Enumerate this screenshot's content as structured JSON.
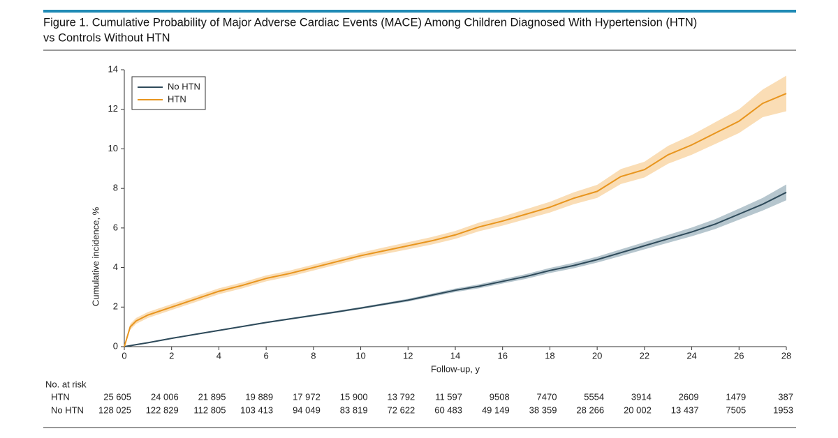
{
  "chart_data": {
    "type": "line",
    "title": [
      "Figure 1. Cumulative Probability of Major Adverse Cardiac Events (MACE) Among Children Diagnosed With Hypertension (HTN)",
      "vs Controls Without HTN"
    ],
    "x_label": "Follow-up, y",
    "y_label": "Cumulative incidence, %",
    "x": [
      0,
      0.25,
      0.5,
      1,
      2,
      3,
      4,
      5,
      6,
      7,
      8,
      9,
      10,
      11,
      12,
      13,
      14,
      15,
      16,
      17,
      18,
      19,
      20,
      21,
      22,
      23,
      24,
      25,
      26,
      27,
      28
    ],
    "series": [
      {
        "name": "No HTN",
        "color": "#2e4a5a",
        "band_color": "#a9bcc6",
        "values": [
          0,
          0.05,
          0.1,
          0.2,
          0.42,
          0.62,
          0.82,
          1.02,
          1.22,
          1.4,
          1.58,
          1.76,
          1.95,
          2.15,
          2.35,
          2.6,
          2.85,
          3.05,
          3.3,
          3.55,
          3.85,
          4.1,
          4.4,
          4.75,
          5.1,
          5.45,
          5.8,
          6.2,
          6.7,
          7.2,
          7.8
        ],
        "lower": [
          0,
          0.04,
          0.08,
          0.18,
          0.39,
          0.59,
          0.79,
          0.98,
          1.18,
          1.36,
          1.53,
          1.71,
          1.9,
          2.09,
          2.28,
          2.52,
          2.76,
          2.95,
          3.19,
          3.43,
          3.72,
          3.96,
          4.25,
          4.58,
          4.92,
          5.25,
          5.58,
          5.95,
          6.42,
          6.88,
          7.4
        ],
        "upper": [
          0,
          0.06,
          0.12,
          0.22,
          0.45,
          0.65,
          0.85,
          1.06,
          1.26,
          1.44,
          1.63,
          1.81,
          2.0,
          2.21,
          2.42,
          2.68,
          2.94,
          3.15,
          3.41,
          3.67,
          3.98,
          4.24,
          4.55,
          4.92,
          5.28,
          5.65,
          6.02,
          6.45,
          6.98,
          7.52,
          8.2
        ]
      },
      {
        "name": "HTN",
        "color": "#e8951e",
        "band_color": "#f9d7a8",
        "values": [
          0,
          1.0,
          1.3,
          1.6,
          2.0,
          2.4,
          2.8,
          3.1,
          3.45,
          3.7,
          4.0,
          4.3,
          4.6,
          4.85,
          5.1,
          5.35,
          5.65,
          6.05,
          6.35,
          6.7,
          7.05,
          7.5,
          7.85,
          8.6,
          8.95,
          9.7,
          10.2,
          10.8,
          11.4,
          12.3,
          12.8
        ],
        "lower": [
          0,
          0.85,
          1.15,
          1.45,
          1.85,
          2.25,
          2.65,
          2.95,
          3.3,
          3.55,
          3.85,
          4.15,
          4.45,
          4.68,
          4.92,
          5.16,
          5.45,
          5.83,
          6.12,
          6.45,
          6.78,
          7.2,
          7.52,
          8.22,
          8.55,
          9.25,
          9.7,
          10.25,
          10.8,
          11.6,
          11.9
        ],
        "upper": [
          0,
          1.15,
          1.45,
          1.75,
          2.15,
          2.55,
          2.95,
          3.25,
          3.6,
          3.85,
          4.15,
          4.45,
          4.75,
          5.02,
          5.28,
          5.54,
          5.85,
          6.27,
          6.58,
          6.95,
          7.32,
          7.8,
          8.18,
          8.98,
          9.35,
          10.15,
          10.7,
          11.35,
          12.0,
          13.0,
          13.7
        ]
      }
    ],
    "xlim": [
      0,
      28
    ],
    "xticks": [
      0,
      2,
      4,
      6,
      8,
      10,
      12,
      14,
      16,
      18,
      20,
      22,
      24,
      26,
      28
    ],
    "ylim": [
      0,
      14
    ],
    "yticks": [
      0,
      2,
      4,
      6,
      8,
      10,
      12,
      14
    ],
    "grid": false,
    "legend": "upper left",
    "at_risk": {
      "title": "No. at risk",
      "rows": [
        {
          "name": "HTN",
          "values": [
            25605,
            24006,
            21895,
            19889,
            17972,
            15900,
            13792,
            11597,
            9508,
            7470,
            5554,
            3914,
            2609,
            1479,
            387
          ],
          "value_labels": [
            "25 605",
            "24 006",
            "21 895",
            "19 889",
            "17 972",
            "15 900",
            "13 792",
            "11 597",
            "9508",
            "7470",
            "5554",
            "3914",
            "2609",
            "1479",
            "387"
          ]
        },
        {
          "name": "No HTN",
          "values": [
            128025,
            122829,
            112805,
            103413,
            94049,
            83819,
            72622,
            60483,
            49149,
            38359,
            28266,
            20002,
            13437,
            7505,
            1953
          ],
          "value_labels": [
            "128 025",
            "122 829",
            "112 805",
            "103 413",
            "94 049",
            "83 819",
            "72 622",
            "60 483",
            "49 149",
            "38 359",
            "28 266",
            "20 002",
            "13 437",
            "7505",
            "1953"
          ]
        }
      ]
    }
  }
}
